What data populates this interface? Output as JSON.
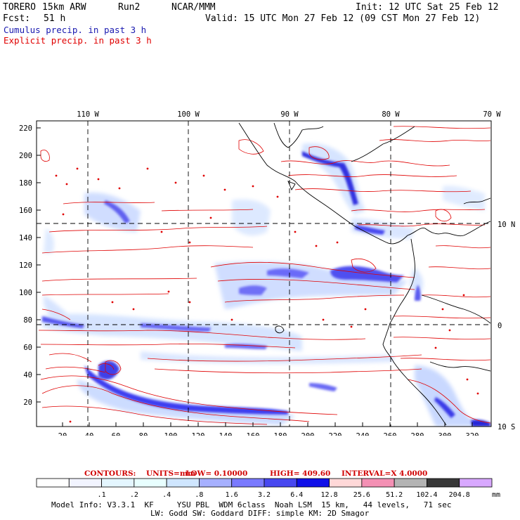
{
  "header": {
    "model": "TORERO",
    "grid": "15km ARW",
    "run": "Run2",
    "org": "NCAR/MMM",
    "init": "Init: 12 UTC Sat 25 Feb 12",
    "fcst_label": "Fcst:",
    "fcst_value": "51 h",
    "valid": "Valid: 15 UTC Mon 27 Feb 12 (09 CST Mon 27 Feb 12)",
    "cumulus": "Cumulus precip. in past 3 h",
    "explicit": "Explicit precip. in past 3 h"
  },
  "map": {
    "lon_labels": [
      "110 W",
      "100 W",
      "90 W",
      "80 W",
      "70 W"
    ],
    "lat_labels": [
      "10 N",
      "0",
      "10 S"
    ],
    "y_ticks": [
      "220",
      "200",
      "180",
      "160",
      "140",
      "120",
      "100",
      "80",
      "60",
      "40",
      "20"
    ],
    "x_ticks": [
      "20",
      "40",
      "60",
      "80",
      "100",
      "120",
      "140",
      "160",
      "180",
      "200",
      "220",
      "240",
      "260",
      "280",
      "300",
      "320"
    ]
  },
  "contours": {
    "label": "CONTOURS:",
    "units": "UNITS=mm",
    "low": "LOW= 0.10000",
    "high": "HIGH= 409.60",
    "interval": "INTERVAL=X 4.0000"
  },
  "legend": {
    "labels": [
      ".1",
      ".2",
      ".4",
      ".8",
      "1.6",
      "3.2",
      "6.4",
      "12.8",
      "25.6",
      "51.2",
      "102.4",
      "204.8"
    ],
    "unit": "mm",
    "colors": [
      "#ffffff",
      "#f2f4ff",
      "#e4f6ff",
      "#e8ffff",
      "#cfe6ff",
      "#a6b0ff",
      "#7a7aff",
      "#4848f0",
      "#1010e8",
      "#ffd8d8",
      "#f490b4",
      "#b4b4b4",
      "#383838",
      "#d8a8ff"
    ]
  },
  "footer": {
    "line1": "Model Info: V3.3.1  KF     YSU PBL  WDM 6class  Noah LSM  15 km,   44 levels,   71 sec",
    "line2": "LW: Godd SW: Goddard DIFF: simple KM: 2D Smagor"
  }
}
